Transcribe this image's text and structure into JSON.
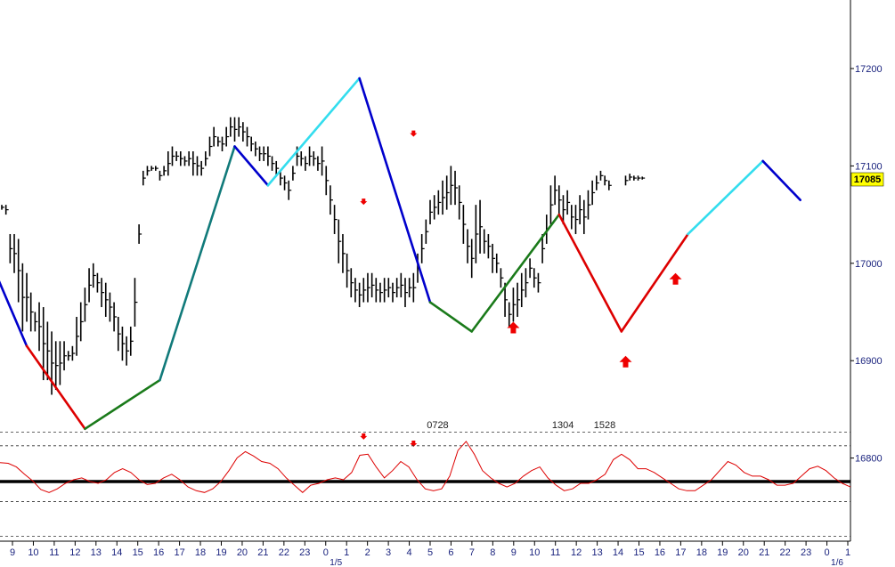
{
  "chart_data": {
    "type": "line",
    "y_axis": {
      "ticks": [
        "17200",
        "17100",
        "17000",
        "16900",
        "16800"
      ],
      "values": [
        17200,
        17100,
        17000,
        16900,
        16800
      ],
      "range": [
        16790,
        17305
      ],
      "side": "right"
    },
    "x_axis": {
      "tick_labels": [
        "9",
        "10",
        "11",
        "12",
        "13",
        "14",
        "15",
        "16",
        "17",
        "18",
        "19",
        "20",
        "21",
        "22",
        "23",
        "0",
        "1",
        "2",
        "3",
        "4",
        "5",
        "6",
        "7",
        "8",
        "9",
        "10",
        "11",
        "12",
        "13",
        "14",
        "15",
        "16",
        "17",
        "18",
        "19",
        "20",
        "21",
        "22",
        "23",
        "0",
        "1"
      ],
      "date_labels": [
        "1/5",
        "1/6"
      ],
      "date_label_index": [
        16,
        40
      ]
    },
    "current_price": {
      "label": "17085",
      "value": 17085,
      "color": "#ffff00"
    },
    "price_bars": [
      [
        0,
        17055,
        17060
      ],
      [
        1,
        17050,
        17060
      ],
      [
        2,
        17000,
        17030
      ],
      [
        3,
        16990,
        17030
      ],
      [
        4,
        16960,
        17025
      ],
      [
        5,
        16930,
        17000
      ],
      [
        6,
        16940,
        16990
      ],
      [
        7,
        16930,
        16970
      ],
      [
        8,
        16930,
        16950
      ],
      [
        9,
        16910,
        16960
      ],
      [
        10,
        16880,
        16955
      ],
      [
        11,
        16880,
        16940
      ],
      [
        12,
        16865,
        16930
      ],
      [
        13,
        16870,
        16920
      ],
      [
        14,
        16875,
        16920
      ],
      [
        15,
        16890,
        16920
      ],
      [
        16,
        16900,
        16910
      ],
      [
        17,
        16900,
        16915
      ],
      [
        18,
        16905,
        16945
      ],
      [
        19,
        16920,
        16960
      ],
      [
        20,
        16940,
        16975
      ],
      [
        21,
        16960,
        16995
      ],
      [
        22,
        16975,
        17000
      ],
      [
        23,
        16970,
        16990
      ],
      [
        24,
        16955,
        16985
      ],
      [
        25,
        16945,
        16980
      ],
      [
        26,
        16940,
        16970
      ],
      [
        27,
        16930,
        16960
      ],
      [
        28,
        16910,
        16945
      ],
      [
        29,
        16900,
        16935
      ],
      [
        30,
        16895,
        16925
      ],
      [
        31,
        16905,
        16935
      ],
      [
        32,
        16935,
        16985
      ],
      [
        33,
        17020,
        17040
      ],
      [
        34,
        17080,
        17095
      ],
      [
        35,
        17090,
        17100
      ],
      [
        36,
        17095,
        17100
      ],
      [
        37,
        17095,
        17100
      ],
      [
        38,
        17085,
        17095
      ],
      [
        39,
        17090,
        17100
      ],
      [
        40,
        17090,
        17115
      ],
      [
        41,
        17100,
        17120
      ],
      [
        42,
        17105,
        17115
      ],
      [
        43,
        17100,
        17115
      ],
      [
        44,
        17100,
        17110
      ],
      [
        45,
        17100,
        17115
      ],
      [
        46,
        17090,
        17115
      ],
      [
        47,
        17090,
        17110
      ],
      [
        48,
        17090,
        17105
      ],
      [
        49,
        17100,
        17115
      ],
      [
        50,
        17110,
        17130
      ],
      [
        51,
        17120,
        17140
      ],
      [
        52,
        17120,
        17130
      ],
      [
        53,
        17115,
        17130
      ],
      [
        54,
        17120,
        17140
      ],
      [
        55,
        17130,
        17150
      ],
      [
        56,
        17125,
        17150
      ],
      [
        57,
        17130,
        17150
      ],
      [
        58,
        17125,
        17145
      ],
      [
        59,
        17120,
        17140
      ],
      [
        60,
        17115,
        17130
      ],
      [
        61,
        17110,
        17125
      ],
      [
        62,
        17105,
        17120
      ],
      [
        63,
        17105,
        17120
      ],
      [
        64,
        17100,
        17120
      ],
      [
        65,
        17095,
        17110
      ],
      [
        66,
        17090,
        17105
      ],
      [
        67,
        17080,
        17095
      ],
      [
        68,
        17075,
        17090
      ],
      [
        69,
        17065,
        17085
      ],
      [
        70,
        17085,
        17100
      ],
      [
        71,
        17100,
        17120
      ],
      [
        72,
        17100,
        17115
      ],
      [
        73,
        17095,
        17110
      ],
      [
        74,
        17100,
        17120
      ],
      [
        75,
        17100,
        17115
      ],
      [
        76,
        17095,
        17110
      ],
      [
        77,
        17090,
        17120
      ],
      [
        78,
        17070,
        17100
      ],
      [
        79,
        17050,
        17080
      ],
      [
        80,
        17030,
        17060
      ],
      [
        81,
        17000,
        17045
      ],
      [
        82,
        16990,
        17030
      ],
      [
        83,
        16975,
        17010
      ],
      [
        84,
        16965,
        16995
      ],
      [
        85,
        16960,
        16985
      ],
      [
        86,
        16955,
        16980
      ],
      [
        87,
        16960,
        16985
      ],
      [
        88,
        16960,
        16990
      ],
      [
        89,
        16965,
        16990
      ],
      [
        90,
        16960,
        16985
      ],
      [
        91,
        16960,
        16980
      ],
      [
        92,
        16960,
        16985
      ],
      [
        93,
        16965,
        16985
      ],
      [
        94,
        16960,
        16980
      ],
      [
        95,
        16965,
        16985
      ],
      [
        96,
        16965,
        16990
      ],
      [
        97,
        16955,
        16985
      ],
      [
        98,
        16965,
        16985
      ],
      [
        99,
        16960,
        16990
      ],
      [
        100,
        16980,
        17010
      ],
      [
        101,
        17000,
        17030
      ],
      [
        102,
        17020,
        17045
      ],
      [
        103,
        17040,
        17065
      ],
      [
        104,
        17045,
        17070
      ],
      [
        105,
        17050,
        17075
      ],
      [
        106,
        17050,
        17085
      ],
      [
        107,
        17055,
        17090
      ],
      [
        108,
        17060,
        17100
      ],
      [
        109,
        17060,
        17095
      ],
      [
        110,
        17045,
        17080
      ],
      [
        111,
        17020,
        17060
      ],
      [
        112,
        17000,
        17035
      ],
      [
        113,
        16985,
        17025
      ],
      [
        114,
        17000,
        17060
      ],
      [
        115,
        17010,
        17065
      ],
      [
        116,
        17010,
        17035
      ],
      [
        117,
        17005,
        17030
      ],
      [
        118,
        16990,
        17020
      ],
      [
        119,
        16990,
        17010
      ],
      [
        120,
        16975,
        16995
      ],
      [
        121,
        16945,
        16980
      ],
      [
        122,
        16935,
        16960
      ],
      [
        123,
        16940,
        16975
      ],
      [
        124,
        16945,
        16980
      ],
      [
        125,
        16955,
        16990
      ],
      [
        126,
        16965,
        16995
      ],
      [
        127,
        16985,
        17005
      ],
      [
        128,
        16975,
        16995
      ],
      [
        129,
        16970,
        16990
      ],
      [
        130,
        17000,
        17030
      ],
      [
        131,
        17020,
        17050
      ],
      [
        132,
        17040,
        17080
      ],
      [
        133,
        17060,
        17090
      ],
      [
        134,
        17050,
        17080
      ],
      [
        135,
        17040,
        17070
      ],
      [
        136,
        17050,
        17075
      ],
      [
        137,
        17035,
        17060
      ],
      [
        138,
        17030,
        17060
      ],
      [
        139,
        17040,
        17070
      ],
      [
        140,
        17030,
        17065
      ],
      [
        141,
        17045,
        17075
      ],
      [
        142,
        17060,
        17085
      ],
      [
        143,
        17075,
        17090
      ],
      [
        144,
        17085,
        17095
      ],
      [
        145,
        17080,
        17090
      ],
      [
        146,
        17075,
        17085
      ],
      [
        150,
        17080,
        17090
      ],
      [
        151,
        17085,
        17092
      ],
      [
        152,
        17085,
        17090
      ],
      [
        153,
        17085,
        17090
      ],
      [
        154,
        17086,
        17089
      ]
    ],
    "zigzag": [
      {
        "color": "#0000cc",
        "points": [
          [
            -1,
            16985
          ],
          [
            6,
            16915
          ]
        ]
      },
      {
        "color": "#dd0000",
        "points": [
          [
            6,
            16915
          ],
          [
            20,
            16830
          ]
        ]
      },
      {
        "color": "#1a7a1a",
        "points": [
          [
            20,
            16830
          ],
          [
            38,
            16880
          ]
        ]
      },
      {
        "color": "#117a7a",
        "points": [
          [
            38,
            16880
          ],
          [
            56,
            17120
          ]
        ]
      },
      {
        "color": "#0000cc",
        "points": [
          [
            56,
            17120
          ],
          [
            64,
            17080
          ]
        ]
      },
      {
        "color": "#33ddee",
        "points": [
          [
            64,
            17080
          ],
          [
            86,
            17190
          ]
        ]
      },
      {
        "color": "#0000cc",
        "points": [
          [
            86,
            17190
          ],
          [
            103,
            16960
          ]
        ]
      },
      {
        "color": "#1a7a1a",
        "points": [
          [
            103,
            16960
          ],
          [
            113,
            16930
          ]
        ]
      },
      {
        "color": "#1a7a1a",
        "points": [
          [
            113,
            16930
          ],
          [
            134,
            17050
          ]
        ]
      },
      {
        "color": "#dd0000",
        "points": [
          [
            134,
            17050
          ],
          [
            149,
            16930
          ]
        ]
      },
      {
        "color": "#dd0000",
        "points": [
          [
            149,
            16930
          ],
          [
            165,
            17030
          ]
        ]
      },
      {
        "color": "#33ddee",
        "points": [
          [
            165,
            17030
          ],
          [
            183,
            17105
          ]
        ]
      },
      {
        "color": "#0000cc",
        "points": [
          [
            183,
            17105
          ],
          [
            192,
            17065
          ]
        ]
      }
    ],
    "oscillator": {
      "color": "#dd0000",
      "values": [
        0.52,
        0.5,
        0.4,
        0.2,
        0.02,
        -0.22,
        -0.3,
        -0.2,
        -0.05,
        0.05,
        0.1,
        0.0,
        -0.05,
        0.05,
        0.25,
        0.35,
        0.25,
        0.05,
        -0.08,
        -0.05,
        0.1,
        0.2,
        0.05,
        -0.15,
        -0.25,
        -0.3,
        -0.2,
        0.0,
        0.3,
        0.65,
        0.82,
        0.7,
        0.55,
        0.5,
        0.35,
        0.1,
        -0.1,
        -0.3,
        -0.1,
        -0.05,
        0.05,
        0.1,
        0.05,
        0.25,
        0.72,
        0.75,
        0.4,
        0.1,
        0.3,
        0.55,
        0.4,
        0.05,
        -0.2,
        -0.25,
        -0.2,
        0.15,
        0.85,
        1.1,
        0.75,
        0.3,
        0.1,
        -0.05,
        -0.15,
        -0.05,
        0.15,
        0.3,
        0.4,
        0.1,
        -0.1,
        -0.25,
        -0.2,
        -0.05,
        -0.05,
        0.05,
        0.2,
        0.6,
        0.75,
        0.6,
        0.35,
        0.35,
        0.25,
        0.1,
        -0.05,
        -0.2,
        -0.25,
        -0.25,
        -0.1,
        0.05,
        0.3,
        0.55,
        0.45,
        0.25,
        0.15,
        0.15,
        0.05,
        -0.1,
        -0.1,
        -0.05,
        0.15,
        0.35,
        0.42,
        0.3,
        0.1,
        -0.05,
        -0.15
      ],
      "bold_line": 0,
      "dashed_lines": [
        1.35,
        0.98,
        -0.55,
        -1.5
      ]
    },
    "annotations": [
      {
        "text": "0728",
        "x_index": 21
      },
      {
        "text": "1304",
        "x_index": 27
      },
      {
        "text": "1528",
        "x_index": 29
      }
    ],
    "grid": false,
    "arrows_up": [
      {
        "x_index": 123,
        "value": 16940
      },
      {
        "x_index": 150,
        "value": 16905
      },
      {
        "x_index": 162,
        "value": 16990
      }
    ],
    "arrows_down_main": [
      {
        "x_index": 87,
        "value": 17060
      },
      {
        "x_index": 99,
        "value": 17130
      }
    ],
    "arrows_down_osc": [
      {
        "x_index": 87,
        "value": 1.15
      },
      {
        "x_index": 99,
        "value": 0.95
      }
    ]
  }
}
